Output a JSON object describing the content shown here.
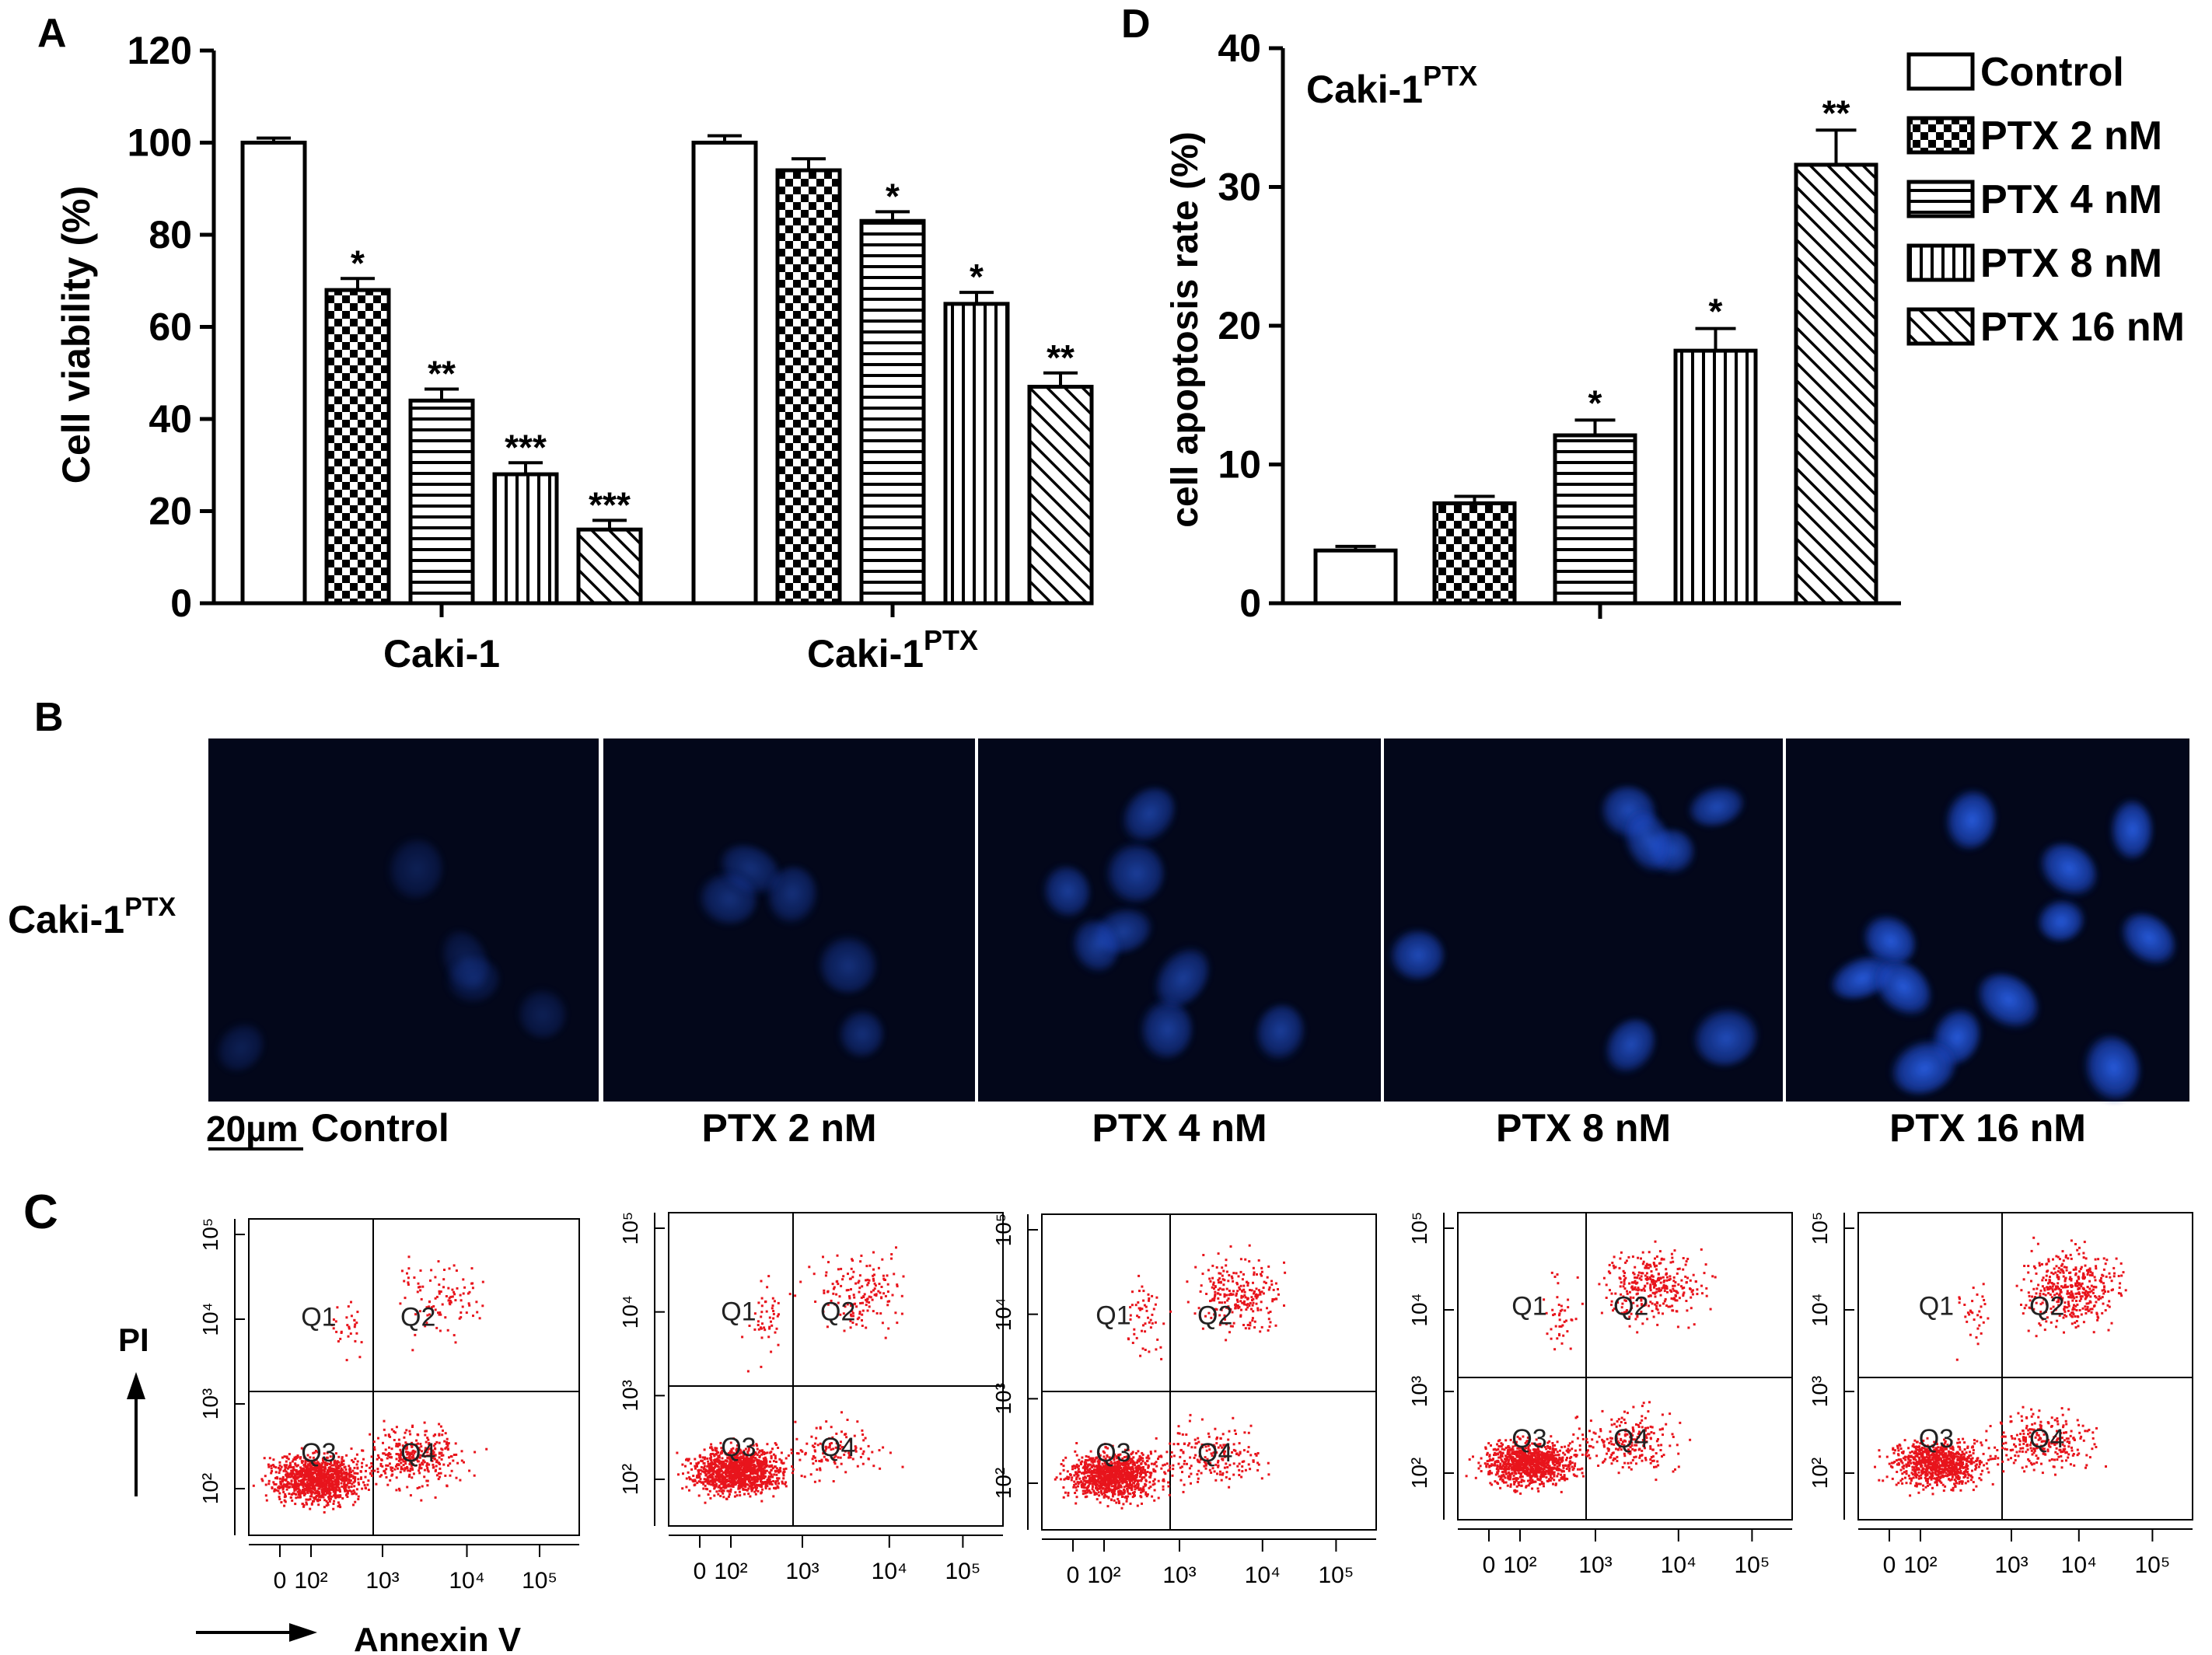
{
  "panels": {
    "A": {
      "letter": "A"
    },
    "B": {
      "letter": "B",
      "row_label": "Caki-1",
      "row_label_sup": "PTX",
      "scale_bar": "20µm",
      "captions": [
        "Control",
        "PTX 2 nM",
        "PTX 4 nM",
        "PTX 8 nM",
        "PTX 16 nM"
      ]
    },
    "C": {
      "letter": "C",
      "y_label": "PI",
      "x_label": "Annexin V",
      "quadrants": [
        "Q1",
        "Q2",
        "Q3",
        "Q4"
      ],
      "x_ticks": [
        "0",
        "10²",
        "10³",
        "10⁴",
        "10⁵"
      ],
      "y_ticks": [
        "10²",
        "10³",
        "10⁴",
        "10⁵"
      ]
    },
    "D": {
      "letter": "D",
      "annotation": "Caki-1",
      "annotation_sup": "PTX"
    }
  },
  "legend": [
    "Control",
    "PTX 2 nM",
    "PTX 4 nM",
    "PTX 8 nM",
    "PTX 16 nM"
  ],
  "colors": {
    "dots": "#e8141c",
    "fluor_bg": "#03071a",
    "nucleus": "#1f4fd8",
    "ink": "#000000"
  },
  "chart_data": [
    {
      "type": "bar",
      "panel": "A",
      "ylabel": "Cell viability (%)",
      "ylim": [
        0,
        120
      ],
      "yticks": [
        0,
        20,
        40,
        60,
        80,
        100,
        120
      ],
      "groups": [
        {
          "name": "Caki-1",
          "name_sup": "",
          "values": [
            100,
            68,
            44,
            28,
            16
          ],
          "errors": [
            1,
            2.5,
            2.5,
            2.5,
            2
          ],
          "marks": [
            "",
            "*",
            "**",
            "***",
            "***"
          ]
        },
        {
          "name": "Caki-1",
          "name_sup": "PTX",
          "values": [
            100,
            94,
            83,
            65,
            47
          ],
          "errors": [
            1.5,
            2.5,
            2,
            2.5,
            3
          ],
          "marks": [
            "",
            "",
            "*",
            "*",
            "**"
          ]
        }
      ],
      "series": [
        "Control",
        "PTX 2 nM",
        "PTX 4 nM",
        "PTX 8 nM",
        "PTX 16 nM"
      ]
    },
    {
      "type": "bar",
      "panel": "D",
      "ylabel": "cell apoptosis rate (%)",
      "ylim": [
        0,
        40
      ],
      "yticks": [
        0,
        10,
        20,
        30,
        40
      ],
      "categories": [
        "Control",
        "PTX 2 nM",
        "PTX 4 nM",
        "PTX 8 nM",
        "PTX 16 nM"
      ],
      "values": [
        3.8,
        7.2,
        12.1,
        18.2,
        31.6
      ],
      "errors": [
        0.3,
        0.5,
        1.1,
        1.6,
        2.5
      ],
      "marks": [
        "",
        "",
        "*",
        "*",
        "**"
      ]
    },
    {
      "type": "scatter",
      "panel": "C",
      "xlabel": "Annexin V",
      "ylabel": "PI",
      "plots": [
        {
          "name": "Control",
          "fractions": {
            "Q3": 0.72,
            "Q4": 0.2,
            "Q2": 0.06,
            "Q1": 0.02
          }
        },
        {
          "name": "PTX 2 nM",
          "fractions": {
            "Q3": 0.78,
            "Q4": 0.08,
            "Q2": 0.11,
            "Q1": 0.03
          }
        },
        {
          "name": "PTX 4 nM",
          "fractions": {
            "Q3": 0.7,
            "Q4": 0.12,
            "Q2": 0.15,
            "Q1": 0.03
          }
        },
        {
          "name": "PTX 8 nM",
          "fractions": {
            "Q3": 0.62,
            "Q4": 0.16,
            "Q2": 0.2,
            "Q1": 0.02
          }
        },
        {
          "name": "PTX 16 nM",
          "fractions": {
            "Q3": 0.55,
            "Q4": 0.17,
            "Q2": 0.26,
            "Q1": 0.02
          }
        }
      ]
    }
  ]
}
